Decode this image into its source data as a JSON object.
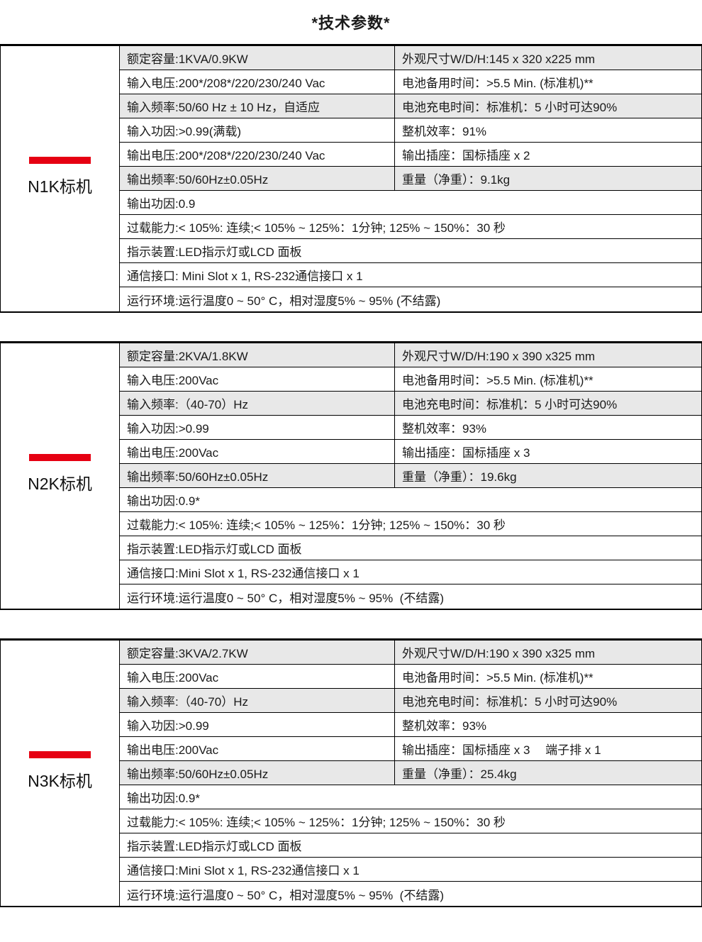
{
  "page_title": "*技术参数*",
  "colors": {
    "accent": "#e60012",
    "row_gray": "#e8e8e8"
  },
  "sections": [
    {
      "model": "N1K标机",
      "rows": [
        {
          "left": "额定容量:1KVA/0.9KW",
          "right": "外观尺寸W/D/H:145 x 320 x225 mm",
          "gray": true,
          "span": false
        },
        {
          "left": "输入电压:200*/208*/220/230/240 Vac",
          "right": "电池备用时间：>5.5 Min. (标准机)**",
          "gray": false,
          "span": false
        },
        {
          "left": "输入频率:50/60 Hz ± 10 Hz，自适应",
          "right": "电池充电时间：标准机：5 小时可达90%",
          "gray": true,
          "span": false
        },
        {
          "left": "输入功因:>0.99(满载)",
          "right": "整机效率：91%",
          "gray": false,
          "span": false
        },
        {
          "left": "输出电压:200*/208*/220/230/240 Vac",
          "right": "输出插座：国标插座 x 2",
          "gray": false,
          "span": false
        },
        {
          "left": "输出频率:50/60Hz±0.05Hz",
          "right": "重量（净重）：9.1kg",
          "gray": true,
          "span": false
        },
        {
          "left": "输出功因:0.9",
          "gray": false,
          "span": true
        },
        {
          "left": "过载能力:< 105%: 连续;< 105% ~ 125%：1分钟; 125% ~ 150%：30 秒",
          "gray": false,
          "span": true
        },
        {
          "left": "指示装置:LED指示灯或LCD 面板",
          "gray": false,
          "span": true
        },
        {
          "left": "通信接口: Mini Slot x 1, RS-232通信接口 x 1",
          "gray": false,
          "span": true
        },
        {
          "left": "运行环境:运行温度0 ~ 50° C，相对湿度5% ~ 95% (不结露)",
          "gray": false,
          "span": true
        }
      ]
    },
    {
      "model": "N2K标机",
      "rows": [
        {
          "left": "额定容量:2KVA/1.8KW",
          "right": "外观尺寸W/D/H:190 x 390 x325 mm",
          "gray": true,
          "span": false
        },
        {
          "left": "输入电压:200Vac",
          "right": "电池备用时间：>5.5 Min. (标准机)**",
          "gray": false,
          "span": false
        },
        {
          "left": "输入频率:（40-70）Hz",
          "right": "电池充电时间：标准机：5 小时可达90%",
          "gray": true,
          "span": false
        },
        {
          "left": "输入功因:>0.99",
          "right": "整机效率：93%",
          "gray": false,
          "span": false
        },
        {
          "left": "输出电压:200Vac",
          "right": "输出插座：国标插座 x 3",
          "gray": false,
          "span": false
        },
        {
          "left": "输出频率:50/60Hz±0.05Hz",
          "right": "重量（净重）：19.6kg",
          "gray": true,
          "span": false
        },
        {
          "left": "输出功因:0.9*",
          "gray": false,
          "span": true
        },
        {
          "left": "过载能力:< 105%: 连续;< 105% ~ 125%：1分钟; 125% ~ 150%：30 秒",
          "gray": false,
          "span": true
        },
        {
          "left": "指示装置:LED指示灯或LCD 面板",
          "gray": false,
          "span": true
        },
        {
          "left": "通信接口:Mini Slot x 1, RS-232通信接口 x 1",
          "gray": false,
          "span": true
        },
        {
          "left": "运行环境:运行温度0 ~ 50° C，相对湿度5% ~ 95%  (不结露)",
          "gray": false,
          "span": true
        }
      ]
    },
    {
      "model": "N3K标机",
      "rows": [
        {
          "left": "额定容量:3KVA/2.7KW",
          "right": "外观尺寸W/D/H:190 x 390 x325 mm",
          "gray": true,
          "span": false
        },
        {
          "left": "输入电压:200Vac",
          "right": "电池备用时间：>5.5 Min. (标准机)**",
          "gray": false,
          "span": false
        },
        {
          "left": "输入频率:（40-70）Hz",
          "right": "电池充电时间：标准机：5 小时可达90%",
          "gray": true,
          "span": false
        },
        {
          "left": "输入功因:>0.99",
          "right": "整机效率：93%",
          "gray": false,
          "span": false
        },
        {
          "left": "输出电压:200Vac",
          "right": "输出插座：国标插座 x 3　 端子排 x 1",
          "gray": false,
          "span": false
        },
        {
          "left": "输出频率:50/60Hz±0.05Hz",
          "right": "重量（净重）：25.4kg",
          "gray": true,
          "span": false
        },
        {
          "left": "输出功因:0.9*",
          "gray": false,
          "span": true
        },
        {
          "left": "过载能力:< 105%: 连续;< 105% ~ 125%：1分钟; 125% ~ 150%：30 秒",
          "gray": false,
          "span": true
        },
        {
          "left": "指示装置:LED指示灯或LCD 面板",
          "gray": false,
          "span": true
        },
        {
          "left": "通信接口:Mini Slot x 1, RS-232通信接口 x 1",
          "gray": false,
          "span": true
        },
        {
          "left": "运行环境:运行温度0 ~ 50° C，相对湿度5% ~ 95%  (不结露)",
          "gray": false,
          "span": true
        }
      ]
    }
  ]
}
